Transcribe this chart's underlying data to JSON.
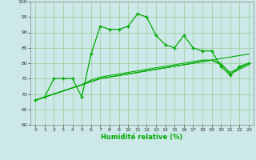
{
  "x": [
    0,
    1,
    2,
    3,
    4,
    5,
    6,
    7,
    8,
    9,
    10,
    11,
    12,
    13,
    14,
    15,
    16,
    17,
    18,
    19,
    20,
    21,
    22,
    23
  ],
  "y_main": [
    68,
    69,
    75,
    75,
    75,
    69,
    83,
    92,
    91,
    91,
    92,
    96,
    95,
    89,
    86,
    85,
    89,
    85,
    84,
    84,
    79,
    76,
    79,
    80
  ],
  "y_trend1": [
    68,
    69,
    70,
    71,
    72,
    73,
    74.5,
    75.5,
    76,
    76.5,
    77,
    77.5,
    78,
    78.5,
    79,
    79.5,
    80,
    80.5,
    81,
    81,
    80,
    76.5,
    78,
    79.5
  ],
  "y_trend2": [
    68,
    69,
    70,
    71,
    72,
    73,
    74,
    75,
    75.5,
    76,
    76.5,
    77,
    77.5,
    78,
    78.5,
    79,
    79.5,
    80,
    80.5,
    81,
    81.5,
    82,
    82.5,
    83
  ],
  "y_trend3": [
    68,
    69,
    70,
    71,
    72,
    73,
    74,
    75,
    75.5,
    76,
    76.5,
    77,
    77.5,
    78,
    78.5,
    79,
    79.5,
    80,
    80.5,
    81,
    79.5,
    77,
    78.5,
    80
  ],
  "line_color": "#00aa00",
  "bg_color": "#cce8e8",
  "grid_color": "#99cc99",
  "xlabel": "Humidité relative (%)",
  "ylim": [
    60,
    100
  ],
  "xlim": [
    -0.5,
    23.5
  ],
  "yticks": [
    60,
    65,
    70,
    75,
    80,
    85,
    90,
    95,
    100
  ],
  "xticks": [
    0,
    1,
    2,
    3,
    4,
    5,
    6,
    7,
    8,
    9,
    10,
    11,
    12,
    13,
    14,
    15,
    16,
    17,
    18,
    19,
    20,
    21,
    22,
    23
  ]
}
